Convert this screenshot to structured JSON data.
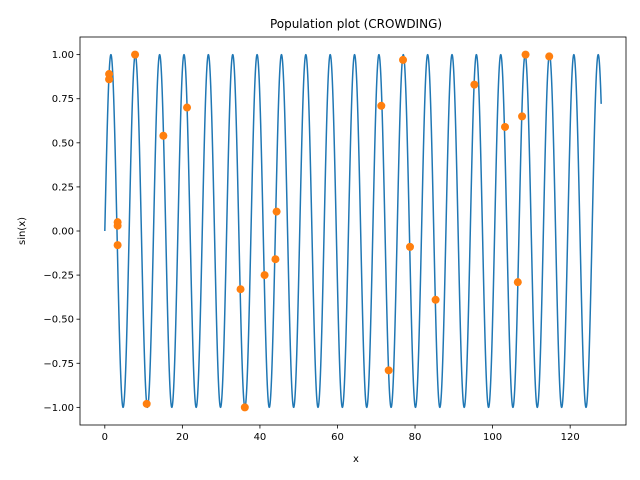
{
  "chart_data": {
    "type": "line",
    "title": "Population plot (CROWDING)",
    "xlabel": "x",
    "ylabel": "sin(x)",
    "xlim": [
      -6.4,
      134.4
    ],
    "ylim": [
      -1.1,
      1.1
    ],
    "xticks": [
      0,
      20,
      40,
      60,
      80,
      100,
      120
    ],
    "xtick_labels": [
      "0",
      "20",
      "40",
      "60",
      "80",
      "100",
      "120"
    ],
    "yticks": [
      -1.0,
      -0.75,
      -0.5,
      -0.25,
      0.0,
      0.25,
      0.5,
      0.75,
      1.0
    ],
    "ytick_labels": [
      "−1.00",
      "−0.75",
      "−0.50",
      "−0.25",
      "0.00",
      "0.25",
      "0.50",
      "0.75",
      "1.00"
    ],
    "grid": false,
    "series": [
      {
        "kind": "line",
        "function": "sin(x)",
        "x_range": [
          0,
          128
        ],
        "color": "#1f77b4"
      },
      {
        "kind": "scatter",
        "color": "#ff7f0e",
        "points": [
          [
            1.1,
            0.89
          ],
          [
            1.1,
            0.86
          ],
          [
            3.3,
            0.05
          ],
          [
            3.3,
            0.03
          ],
          [
            3.3,
            -0.08
          ],
          [
            7.8,
            1.0
          ],
          [
            10.8,
            -0.98
          ],
          [
            15.1,
            0.54
          ],
          [
            21.2,
            0.7
          ],
          [
            35.0,
            -0.33
          ],
          [
            36.1,
            -1.0
          ],
          [
            41.2,
            -0.25
          ],
          [
            44.0,
            -0.16
          ],
          [
            44.3,
            0.11
          ],
          [
            71.3,
            0.71
          ],
          [
            73.2,
            -0.79
          ],
          [
            76.9,
            0.97
          ],
          [
            78.7,
            -0.09
          ],
          [
            85.3,
            -0.39
          ],
          [
            95.3,
            0.83
          ],
          [
            103.2,
            0.59
          ],
          [
            106.5,
            -0.29
          ],
          [
            107.6,
            0.65
          ],
          [
            108.5,
            1.0
          ],
          [
            114.6,
            0.99
          ]
        ]
      }
    ]
  }
}
